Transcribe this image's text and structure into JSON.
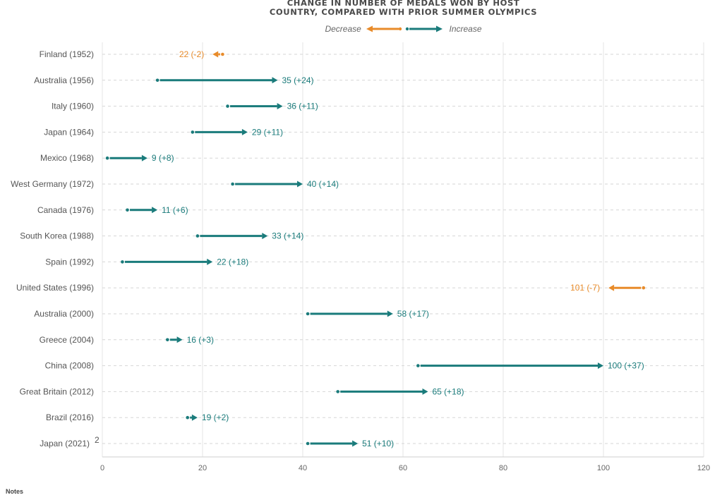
{
  "chart_data": {
    "type": "arrow-dot",
    "title": "CHANGE IN NUMBER OF MEDALS WON BY HOST COUNTRY, COMPARED WITH PRIOR SUMMER OLYMPICS",
    "title_lines": [
      "CHANGE IN NUMBER OF MEDALS WON BY HOST",
      "COUNTRY, COMPARED WITH PRIOR SUMMER OLYMPICS"
    ],
    "legend": {
      "decrease": "Decrease",
      "increase": "Increase"
    },
    "colors": {
      "increase": "#1a7b7b",
      "decrease": "#e88b2a",
      "grid": "#e6e6e6",
      "rowline": "#d6d6d6"
    },
    "xlim": [
      0,
      120
    ],
    "xticks": [
      0,
      20,
      40,
      60,
      80,
      100,
      120
    ],
    "xlabel": "",
    "ylabel": "",
    "grid": true,
    "rows": [
      {
        "label": "Finland (1952)",
        "sup": "",
        "before": 24,
        "after": 22,
        "change": "-2",
        "annotation": "22 (-2)"
      },
      {
        "label": "Australia (1956)",
        "sup": "",
        "before": 11,
        "after": 35,
        "change": "+24",
        "annotation": "35 (+24)"
      },
      {
        "label": "Italy (1960)",
        "sup": "",
        "before": 25,
        "after": 36,
        "change": "+11",
        "annotation": "36 (+11)"
      },
      {
        "label": "Japan (1964)",
        "sup": "",
        "before": 18,
        "after": 29,
        "change": "+11",
        "annotation": "29 (+11)"
      },
      {
        "label": "Mexico (1968)",
        "sup": "",
        "before": 1,
        "after": 9,
        "change": "+8",
        "annotation": "9 (+8)"
      },
      {
        "label": "West Germany (1972)",
        "sup": "",
        "before": 26,
        "after": 40,
        "change": "+14",
        "annotation": "40 (+14)"
      },
      {
        "label": "Canada (1976)",
        "sup": "",
        "before": 5,
        "after": 11,
        "change": "+6",
        "annotation": "11 (+6)"
      },
      {
        "label": "South Korea (1988)",
        "sup": "",
        "before": 19,
        "after": 33,
        "change": "+14",
        "annotation": "33 (+14)"
      },
      {
        "label": "Spain (1992)",
        "sup": "",
        "before": 4,
        "after": 22,
        "change": "+18",
        "annotation": "22 (+18)"
      },
      {
        "label": "United States (1996)",
        "sup": "",
        "before": 108,
        "after": 101,
        "change": "-7",
        "annotation": "101 (-7)"
      },
      {
        "label": "Australia (2000)",
        "sup": "",
        "before": 41,
        "after": 58,
        "change": "+17",
        "annotation": "58 (+17)"
      },
      {
        "label": "Greece (2004)",
        "sup": "",
        "before": 13,
        "after": 16,
        "change": "+3",
        "annotation": "16 (+3)"
      },
      {
        "label": "China (2008)",
        "sup": "",
        "before": 63,
        "after": 100,
        "change": "+37",
        "annotation": "100 (+37)"
      },
      {
        "label": "Great Britain (2012)",
        "sup": "",
        "before": 47,
        "after": 65,
        "change": "+18",
        "annotation": "65 (+18)"
      },
      {
        "label": "Brazil (2016)",
        "sup": "",
        "before": 17,
        "after": 19,
        "change": "+2",
        "annotation": "19 (+2)"
      },
      {
        "label": "Japan (2021)",
        "sup": "2",
        "before": 41,
        "after": 51,
        "change": "+10",
        "annotation": "51 (+10)"
      }
    ]
  },
  "notes_label": "Notes"
}
